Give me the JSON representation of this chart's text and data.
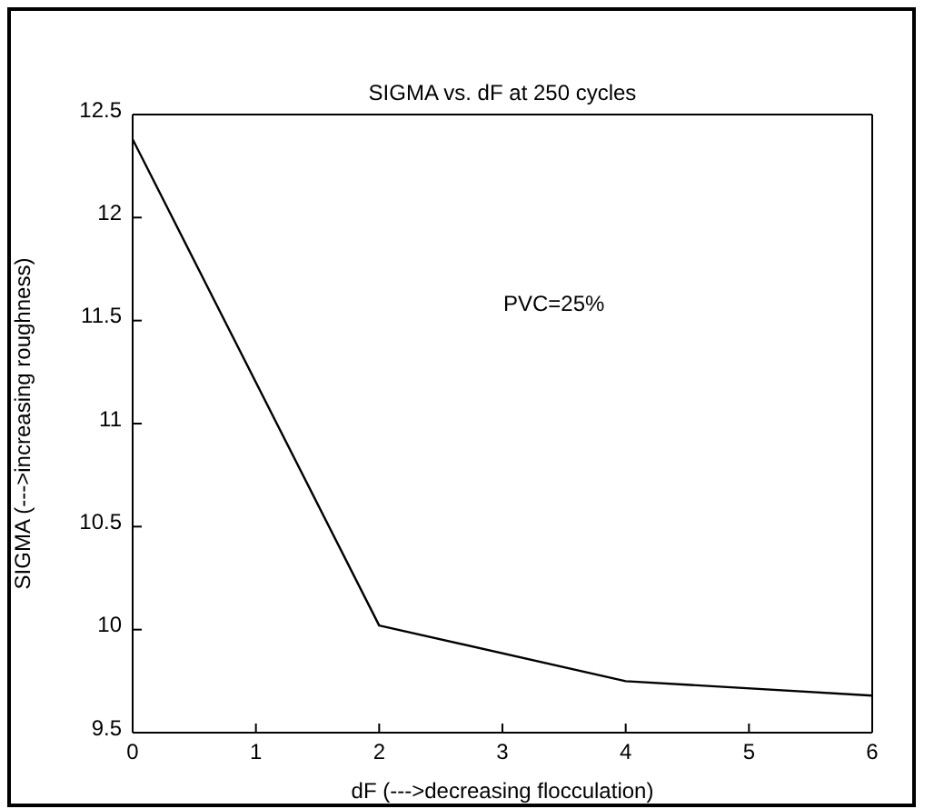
{
  "chart_data": {
    "type": "line",
    "title": "SIGMA vs. dF at 250 cycles",
    "xlabel": "dF (--->decreasing flocculation)",
    "ylabel": "SIGMA (--->increasing roughness)",
    "annotations": [
      "PVC=25%"
    ],
    "x": [
      0,
      2,
      4,
      6
    ],
    "series": [
      {
        "color": "#000000",
        "values": [
          12.38,
          10.02,
          9.75,
          9.68
        ]
      }
    ],
    "xlim": [
      0,
      6
    ],
    "xticks": [
      0,
      1,
      2,
      3,
      4,
      5,
      6
    ],
    "ylim": [
      9.5,
      12.5
    ],
    "yticks": [
      9.5,
      10,
      10.5,
      11,
      11.5,
      12,
      12.5
    ],
    "grid": false,
    "legend": false,
    "marker": "none",
    "line_style": "solid"
  }
}
